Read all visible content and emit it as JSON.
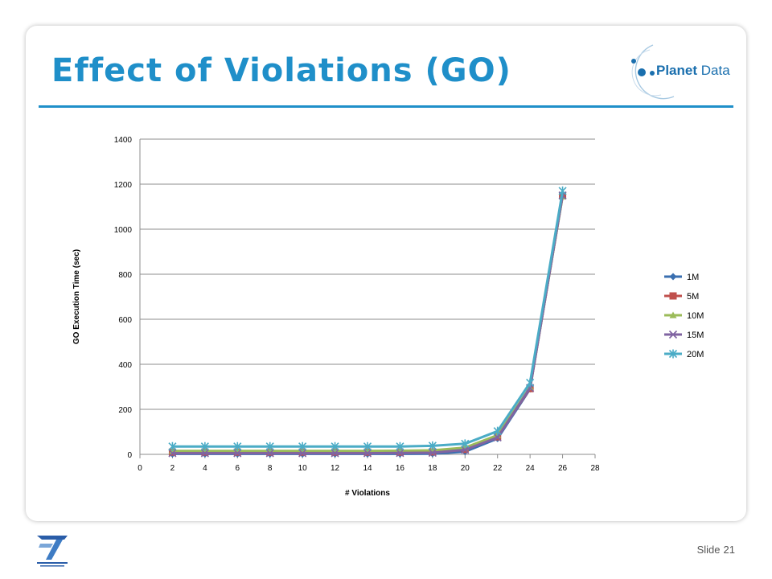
{
  "slide": {
    "title": "Effect of Violations (GO)",
    "logo_text_a": "Planet",
    "logo_text_b": "Data",
    "footer_label": "Slide",
    "footer_number": "21"
  },
  "colors": {
    "title": "#1f8fc9",
    "series": [
      "#3a6fb0",
      "#c0504d",
      "#9bbb59",
      "#8064a2",
      "#4bacc6"
    ]
  },
  "chart_data": {
    "type": "line",
    "title": "",
    "xlabel": "# Violations",
    "ylabel": "GO Execution Time (sec)",
    "xlim": [
      0,
      28
    ],
    "ylim": [
      0,
      1400
    ],
    "x_ticks": [
      0,
      2,
      4,
      6,
      8,
      10,
      12,
      14,
      16,
      18,
      20,
      22,
      24,
      26,
      28
    ],
    "y_ticks": [
      0,
      200,
      400,
      600,
      800,
      1000,
      1200,
      1400
    ],
    "grid": "horizontal",
    "legend_position": "right",
    "x": [
      2,
      4,
      6,
      8,
      10,
      12,
      14,
      16,
      18,
      20,
      22,
      24,
      26
    ],
    "series": [
      {
        "name": "1M",
        "marker": "diamond",
        "values": [
          2,
          2,
          2,
          2,
          2,
          2,
          2,
          2,
          3,
          12,
          70,
          290,
          1150
        ]
      },
      {
        "name": "5M",
        "marker": "square",
        "values": [
          10,
          10,
          10,
          10,
          10,
          10,
          10,
          10,
          11,
          22,
          78,
          292,
          1148
        ]
      },
      {
        "name": "10M",
        "marker": "triangle",
        "values": [
          15,
          15,
          15,
          15,
          15,
          15,
          15,
          16,
          18,
          30,
          85,
          298,
          1145
        ]
      },
      {
        "name": "15M",
        "marker": "x",
        "values": [
          5,
          5,
          5,
          5,
          5,
          5,
          5,
          6,
          7,
          20,
          75,
          295,
          1150
        ]
      },
      {
        "name": "20M",
        "marker": "star",
        "values": [
          35,
          35,
          35,
          35,
          35,
          35,
          35,
          35,
          38,
          47,
          103,
          318,
          1170
        ]
      }
    ]
  }
}
